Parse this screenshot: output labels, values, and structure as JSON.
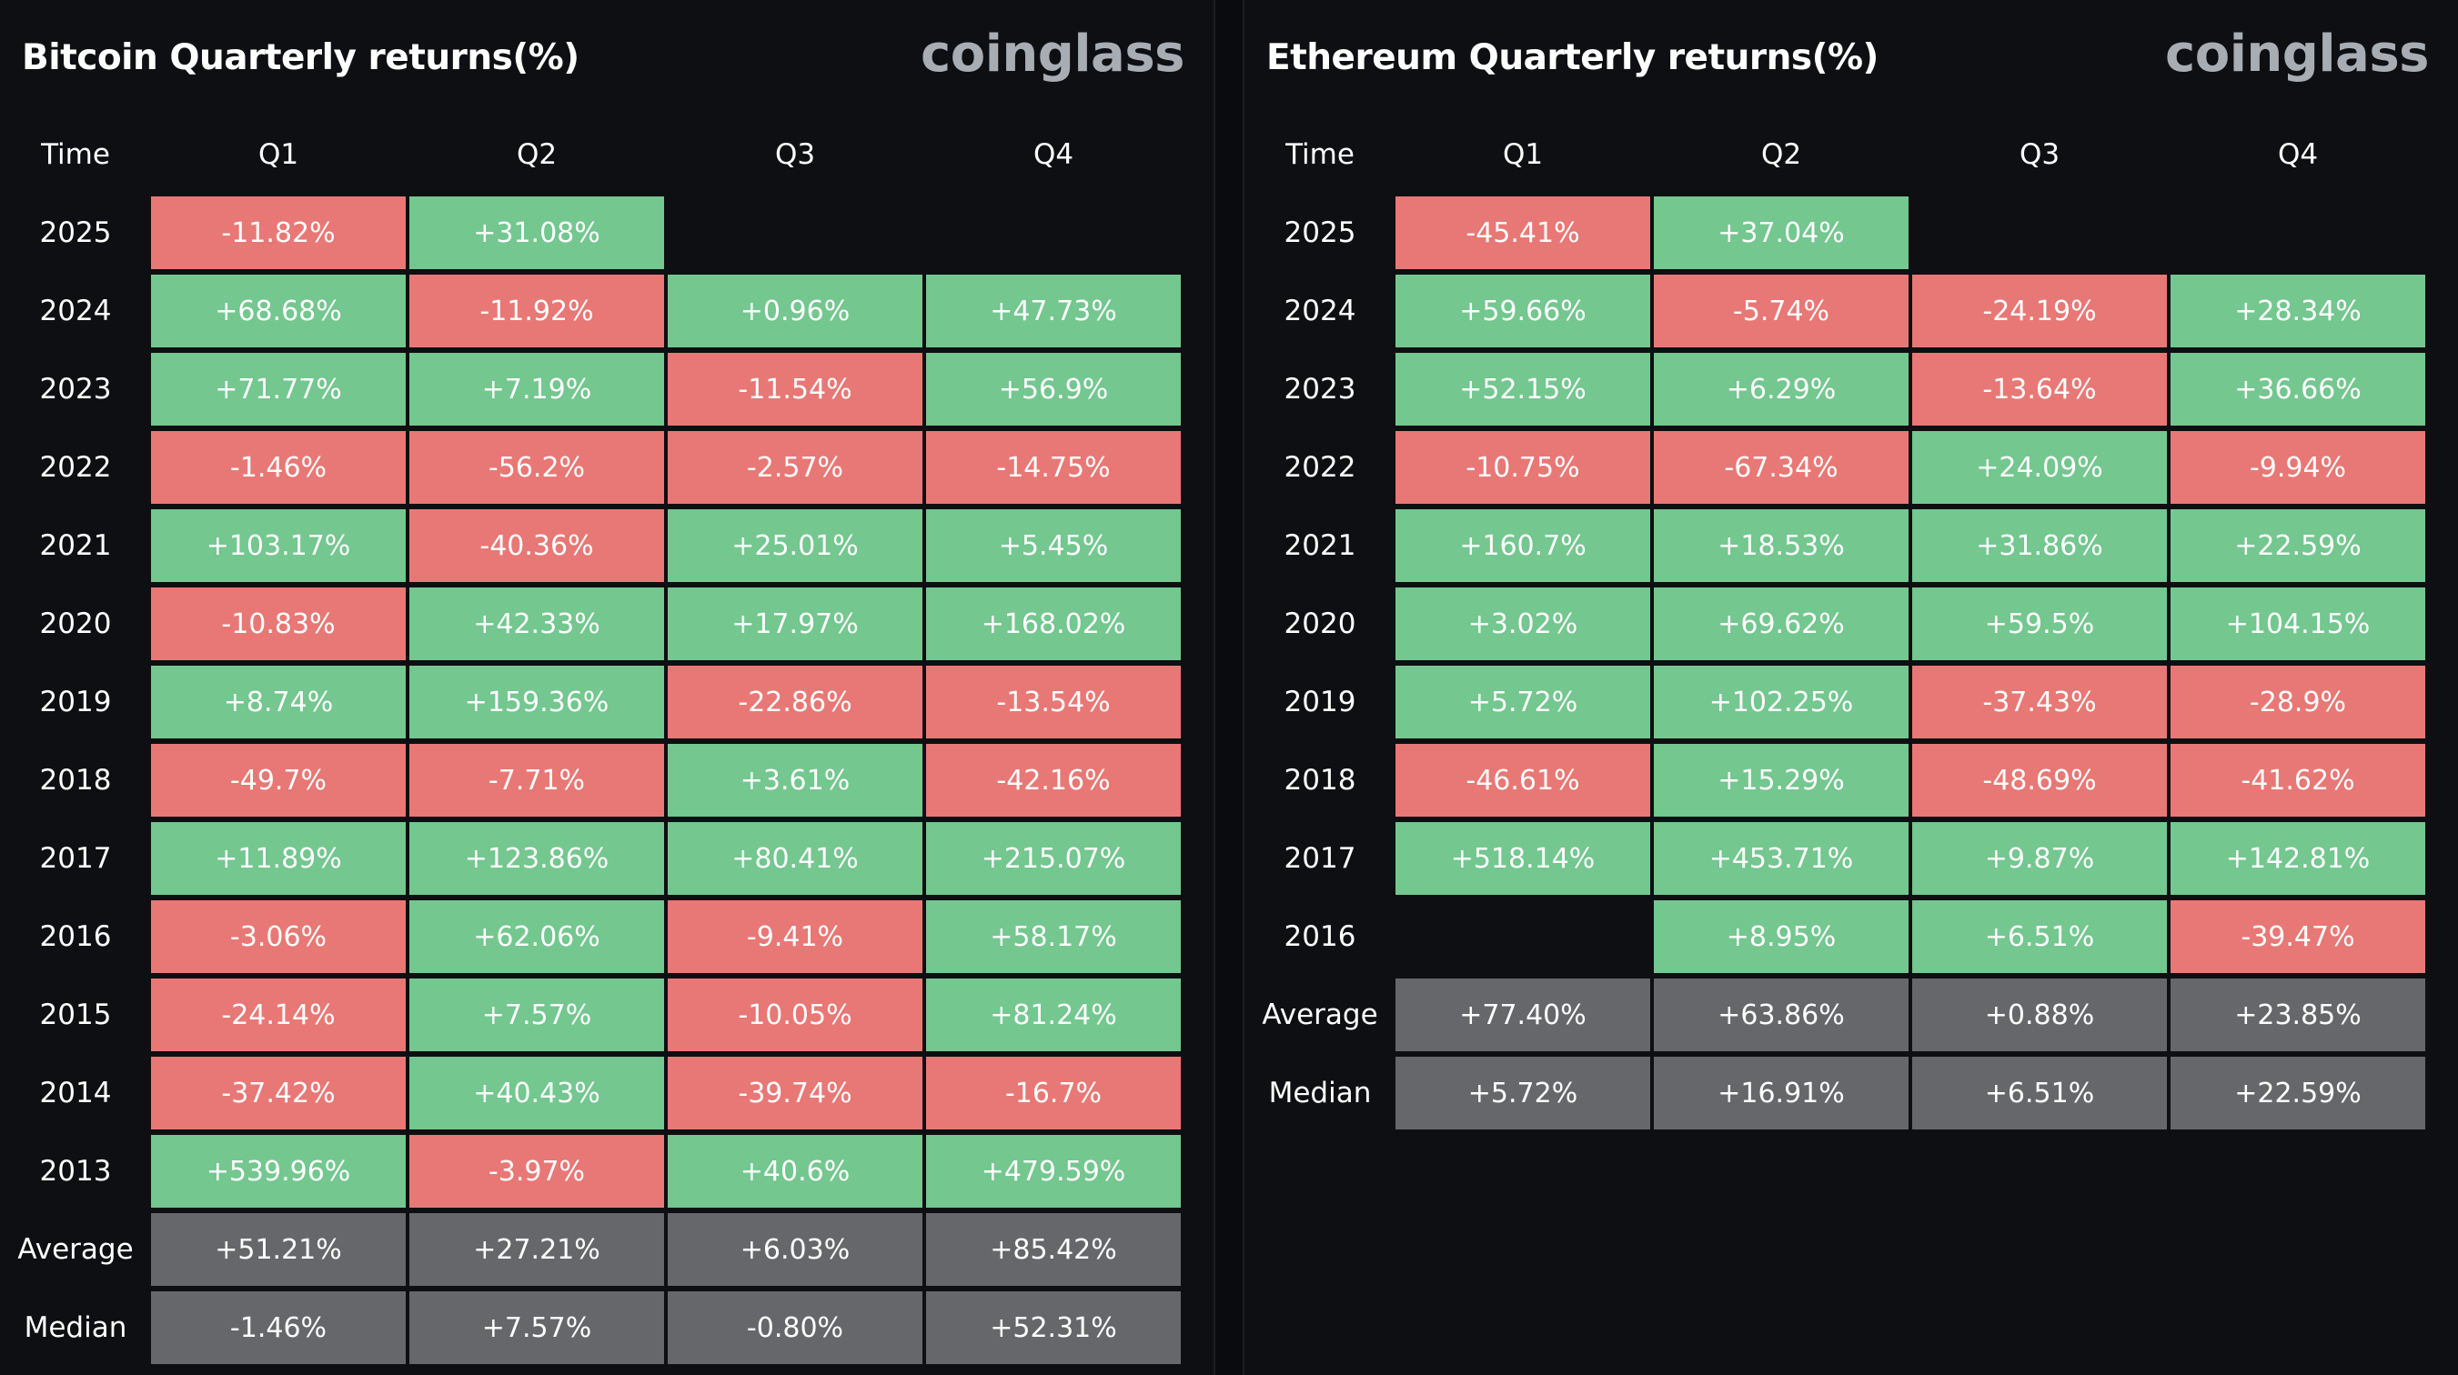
{
  "colors": {
    "positive": "#73c78f",
    "negative": "#e87875",
    "stat": "#66676b",
    "background": "#0d0f12",
    "brand": "#a8acb3"
  },
  "headers": [
    "Time",
    "Q1",
    "Q2",
    "Q3",
    "Q4"
  ],
  "chart_data": [
    {
      "type": "table",
      "title": "Bitcoin Quarterly returns(%)",
      "brand": "coinglass",
      "columns": [
        "Q1",
        "Q2",
        "Q3",
        "Q4"
      ],
      "rows": [
        {
          "label": "2025",
          "kind": "year",
          "values": [
            "-11.82%",
            "+31.08%",
            null,
            null
          ]
        },
        {
          "label": "2024",
          "kind": "year",
          "values": [
            "+68.68%",
            "-11.92%",
            "+0.96%",
            "+47.73%"
          ]
        },
        {
          "label": "2023",
          "kind": "year",
          "values": [
            "+71.77%",
            "+7.19%",
            "-11.54%",
            "+56.9%"
          ]
        },
        {
          "label": "2022",
          "kind": "year",
          "values": [
            "-1.46%",
            "-56.2%",
            "-2.57%",
            "-14.75%"
          ]
        },
        {
          "label": "2021",
          "kind": "year",
          "values": [
            "+103.17%",
            "-40.36%",
            "+25.01%",
            "+5.45%"
          ]
        },
        {
          "label": "2020",
          "kind": "year",
          "values": [
            "-10.83%",
            "+42.33%",
            "+17.97%",
            "+168.02%"
          ]
        },
        {
          "label": "2019",
          "kind": "year",
          "values": [
            "+8.74%",
            "+159.36%",
            "-22.86%",
            "-13.54%"
          ]
        },
        {
          "label": "2018",
          "kind": "year",
          "values": [
            "-49.7%",
            "-7.71%",
            "+3.61%",
            "-42.16%"
          ]
        },
        {
          "label": "2017",
          "kind": "year",
          "values": [
            "+11.89%",
            "+123.86%",
            "+80.41%",
            "+215.07%"
          ]
        },
        {
          "label": "2016",
          "kind": "year",
          "values": [
            "-3.06%",
            "+62.06%",
            "-9.41%",
            "+58.17%"
          ]
        },
        {
          "label": "2015",
          "kind": "year",
          "values": [
            "-24.14%",
            "+7.57%",
            "-10.05%",
            "+81.24%"
          ]
        },
        {
          "label": "2014",
          "kind": "year",
          "values": [
            "-37.42%",
            "+40.43%",
            "-39.74%",
            "-16.7%"
          ]
        },
        {
          "label": "2013",
          "kind": "year",
          "values": [
            "+539.96%",
            "-3.97%",
            "+40.6%",
            "+479.59%"
          ]
        },
        {
          "label": "Average",
          "kind": "stat",
          "values": [
            "+51.21%",
            "+27.21%",
            "+6.03%",
            "+85.42%"
          ]
        },
        {
          "label": "Median",
          "kind": "stat",
          "values": [
            "-1.46%",
            "+7.57%",
            "-0.80%",
            "+52.31%"
          ]
        }
      ]
    },
    {
      "type": "table",
      "title": "Ethereum Quarterly returns(%)",
      "brand": "coinglass",
      "columns": [
        "Q1",
        "Q2",
        "Q3",
        "Q4"
      ],
      "rows": [
        {
          "label": "2025",
          "kind": "year",
          "values": [
            "-45.41%",
            "+37.04%",
            null,
            null
          ]
        },
        {
          "label": "2024",
          "kind": "year",
          "values": [
            "+59.66%",
            "-5.74%",
            "-24.19%",
            "+28.34%"
          ]
        },
        {
          "label": "2023",
          "kind": "year",
          "values": [
            "+52.15%",
            "+6.29%",
            "-13.64%",
            "+36.66%"
          ]
        },
        {
          "label": "2022",
          "kind": "year",
          "values": [
            "-10.75%",
            "-67.34%",
            "+24.09%",
            "-9.94%"
          ]
        },
        {
          "label": "2021",
          "kind": "year",
          "values": [
            "+160.7%",
            "+18.53%",
            "+31.86%",
            "+22.59%"
          ]
        },
        {
          "label": "2020",
          "kind": "year",
          "values": [
            "+3.02%",
            "+69.62%",
            "+59.5%",
            "+104.15%"
          ]
        },
        {
          "label": "2019",
          "kind": "year",
          "values": [
            "+5.72%",
            "+102.25%",
            "-37.43%",
            "-28.9%"
          ]
        },
        {
          "label": "2018",
          "kind": "year",
          "values": [
            "-46.61%",
            "+15.29%",
            "-48.69%",
            "-41.62%"
          ]
        },
        {
          "label": "2017",
          "kind": "year",
          "values": [
            "+518.14%",
            "+453.71%",
            "+9.87%",
            "+142.81%"
          ]
        },
        {
          "label": "2016",
          "kind": "year",
          "values": [
            null,
            "+8.95%",
            "+6.51%",
            "-39.47%"
          ]
        },
        {
          "label": "Average",
          "kind": "stat",
          "values": [
            "+77.40%",
            "+63.86%",
            "+0.88%",
            "+23.85%"
          ]
        },
        {
          "label": "Median",
          "kind": "stat",
          "values": [
            "+5.72%",
            "+16.91%",
            "+6.51%",
            "+22.59%"
          ]
        }
      ]
    }
  ]
}
